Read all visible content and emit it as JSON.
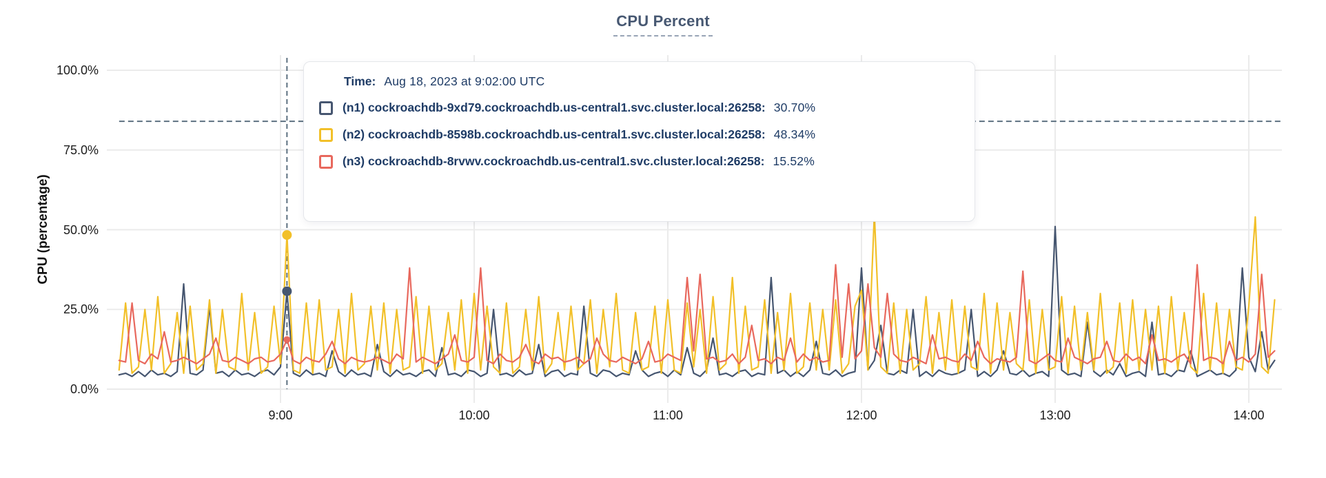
{
  "title": "CPU Percent",
  "colors": {
    "title": "#475872",
    "n1": "#465670",
    "n2": "#F2C029",
    "n3": "#E8685D",
    "crosshair_dash": "#5C7080",
    "grid": "#EBEBEB",
    "tooltip_text": "#1F3C66"
  },
  "tooltip": {
    "time_label": "Time:",
    "time_value": "Aug 18, 2023 at 9:02:00 UTC",
    "rows": [
      {
        "label": "(n1) cockroachdb-9xd79.cockroachdb.us-central1.svc.cluster.local:26258:",
        "value": "30.70%",
        "color": "#465670"
      },
      {
        "label": "(n2) cockroachdb-8598b.cockroachdb.us-central1.svc.cluster.local:26258:",
        "value": "48.34%",
        "color": "#F2C029"
      },
      {
        "label": "(n3) cockroachdb-8rvwv.cockroachdb.us-central1.svc.cluster.local:26258:",
        "value": "15.52%",
        "color": "#E8685D"
      }
    ]
  },
  "chart_data": {
    "type": "line",
    "title": "CPU Percent",
    "xlabel": "",
    "ylabel": "CPU (percentage)",
    "ylim": [
      0,
      100
    ],
    "grid": true,
    "y_ticks": [
      {
        "value": 0,
        "label": "0.0%"
      },
      {
        "value": 25,
        "label": "25.0%"
      },
      {
        "value": 50,
        "label": "50.0%"
      },
      {
        "value": 75,
        "label": "75.0%"
      },
      {
        "value": 100,
        "label": "100.0%"
      }
    ],
    "x_ticks": [
      {
        "minutes": 540,
        "label": "9:00"
      },
      {
        "minutes": 600,
        "label": "10:00"
      },
      {
        "minutes": 660,
        "label": "11:00"
      },
      {
        "minutes": 720,
        "label": "12:00"
      },
      {
        "minutes": 780,
        "label": "13:00"
      },
      {
        "minutes": 840,
        "label": "14:00"
      }
    ],
    "threshold_percent": 84,
    "crosshair": {
      "minutes": 542,
      "time": "Aug 18, 2023 at 9:02:00 UTC",
      "points": [
        {
          "series": 0,
          "value": 30.7,
          "r": 7
        },
        {
          "series": 1,
          "value": 48.34,
          "r": 7
        },
        {
          "series": 2,
          "value": 15.52,
          "r": 5
        }
      ]
    },
    "x_start_minutes": 490,
    "x_step_minutes": 2,
    "series": [
      {
        "name": "(n1) cockroachdb-9xd79.cockroachdb.us-central1.svc.cluster.local:26258",
        "color": "#465670",
        "values": [
          4.5,
          5,
          4,
          5.5,
          4,
          6,
          4.5,
          5,
          4,
          5.5,
          33,
          5,
          4.5,
          6,
          26,
          5,
          5.5,
          4,
          6,
          4.5,
          5,
          4,
          5.5,
          6,
          4.5,
          7,
          30.7,
          5,
          4,
          6,
          4.5,
          5,
          4,
          12,
          5.5,
          4,
          6,
          4.5,
          5,
          4,
          14,
          5.5,
          4,
          6,
          4.5,
          5,
          4,
          5.5,
          6,
          4,
          13,
          4.5,
          5,
          4,
          6,
          5.5,
          4,
          5,
          25,
          4.5,
          5,
          4,
          6,
          4.5,
          5,
          14,
          4,
          5.5,
          6,
          4,
          5,
          4.5,
          26,
          5,
          4,
          6,
          5.5,
          4,
          5,
          4.5,
          12,
          6,
          4,
          5,
          5.5,
          4,
          6,
          4.5,
          13,
          5,
          4,
          6,
          16,
          4.5,
          5,
          4,
          5.5,
          6,
          4,
          5,
          4.5,
          35,
          5,
          6,
          4,
          5.5,
          4,
          6,
          15,
          5,
          4.5,
          6,
          4,
          5,
          5.5,
          38,
          6,
          9,
          20,
          5,
          4.5,
          6,
          5,
          25,
          4,
          5.5,
          4,
          6,
          5,
          4.5,
          5,
          6,
          25,
          4,
          5.5,
          4,
          6,
          12,
          5,
          4.5,
          6,
          4,
          5,
          5.5,
          4,
          51,
          6,
          4.5,
          5,
          4,
          21,
          5.5,
          4,
          6,
          4.5,
          8,
          4,
          5,
          5.5,
          4,
          21,
          4.5,
          5,
          4,
          6,
          5.5,
          12,
          4,
          5,
          6,
          4.5,
          5,
          4,
          6,
          38,
          10,
          5.5,
          18,
          6,
          9
        ]
      },
      {
        "name": "(n2) cockroachdb-8598b.cockroachdb.us-central1.svc.cluster.local:26258",
        "color": "#F2C029",
        "values": [
          6,
          27,
          5,
          7,
          25,
          6,
          29,
          5,
          8,
          24,
          5,
          26,
          6,
          8,
          28,
          5,
          25,
          7,
          6,
          30,
          6,
          24,
          5,
          7,
          26,
          8,
          48.34,
          6,
          5,
          27,
          5,
          28,
          6,
          7,
          25,
          5,
          30,
          6,
          8,
          26,
          6,
          27,
          5,
          25,
          6,
          7,
          29,
          5,
          26,
          6,
          8,
          24,
          6,
          28,
          5,
          30,
          6,
          26,
          7,
          5,
          27,
          5,
          7,
          25,
          6,
          29,
          5,
          8,
          24,
          6,
          26,
          6,
          8,
          28,
          5,
          25,
          7,
          30,
          6,
          5,
          24,
          6,
          7,
          26,
          5,
          28,
          6,
          5,
          27,
          7,
          25,
          5,
          29,
          6,
          8,
          35,
          5,
          26,
          6,
          7,
          28,
          5,
          24,
          6,
          30,
          5,
          7,
          27,
          6,
          25,
          6,
          28,
          5,
          8,
          26,
          31,
          6,
          55,
          7,
          5,
          27,
          5,
          25,
          6,
          8,
          29,
          5,
          24,
          6,
          28,
          5,
          26,
          7,
          6,
          30,
          5,
          27,
          6,
          24,
          8,
          6,
          28,
          5,
          25,
          6,
          7,
          29,
          5,
          26,
          6,
          24,
          6,
          30,
          5,
          7,
          27,
          5,
          28,
          6,
          25,
          6,
          26,
          5,
          29,
          6,
          24,
          7,
          5,
          30,
          6,
          27,
          5,
          25,
          7,
          6,
          26,
          54,
          7,
          5,
          28
        ]
      },
      {
        "name": "(n3) cockroachdb-8rvwv.cockroachdb.us-central1.svc.cluster.local:26258",
        "color": "#E8685D",
        "values": [
          9,
          8.5,
          27,
          9,
          8,
          11,
          9.5,
          18,
          8.5,
          9,
          10,
          9,
          8,
          9.5,
          11,
          16,
          9,
          8.5,
          10,
          9,
          8,
          9.5,
          10,
          8.5,
          9,
          11,
          15.52,
          9,
          8,
          10,
          9,
          8.5,
          11,
          15,
          9.5,
          8,
          10,
          9,
          8.5,
          9,
          10,
          9,
          8,
          11,
          9.5,
          38,
          8.5,
          10,
          9,
          8,
          9.5,
          11,
          17,
          9,
          8.5,
          10,
          38,
          9,
          8,
          11,
          9,
          8.5,
          10,
          14,
          9,
          8,
          11,
          9.5,
          10,
          8.5,
          9,
          10,
          8,
          9.5,
          16,
          11,
          9,
          8.5,
          10,
          9,
          8,
          9.5,
          15,
          8.5,
          9,
          11,
          10,
          9,
          35,
          12,
          36,
          9.5,
          10,
          8.5,
          9,
          11,
          8,
          10,
          20,
          9,
          9.5,
          8,
          10,
          9,
          16,
          8.5,
          11,
          9,
          10,
          8.5,
          9,
          39,
          10,
          33,
          9.5,
          12,
          33,
          13,
          10,
          30,
          11,
          9,
          8.5,
          10,
          9,
          8,
          17,
          9.5,
          10,
          9,
          8.5,
          11,
          9,
          15,
          10,
          8,
          9.5,
          9,
          8.5,
          10,
          37,
          9,
          8,
          9.5,
          11,
          9,
          8.5,
          16,
          10,
          9,
          8,
          9.5,
          10,
          15,
          9,
          8.5,
          11,
          9,
          10,
          8,
          17,
          9,
          9.5,
          8.5,
          10,
          11,
          8,
          39,
          9,
          10,
          9.5,
          8,
          15,
          9,
          10,
          8.5,
          11,
          36,
          10,
          12
        ]
      }
    ]
  }
}
